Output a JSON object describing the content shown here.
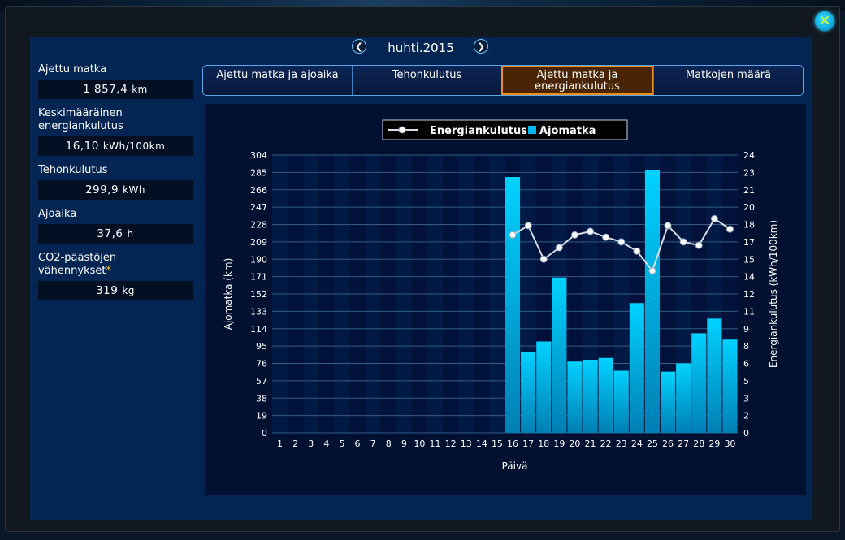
{
  "window": {
    "close_icon": "close-icon"
  },
  "nav": {
    "month": "huhti.2015",
    "prev_icon": "chevron-left-icon",
    "next_icon": "chevron-right-icon"
  },
  "stats": [
    {
      "label": "Ajettu matka",
      "value": "1 857,4",
      "unit": "km"
    },
    {
      "label": "Keskimääräinen energiankulutus",
      "value": "16,10",
      "unit": "kWh/100km"
    },
    {
      "label": "Tehonkulutus",
      "value": "299,9",
      "unit": "kWh"
    },
    {
      "label": "Ajoaika",
      "value": "37,6",
      "unit": "h"
    },
    {
      "label": "CO2-päästöjen vähennykset",
      "asterisk": "*",
      "value": "319",
      "unit": "kg"
    }
  ],
  "tabs": [
    {
      "label": "Ajettu matka ja ajoaika",
      "active": false
    },
    {
      "label": "Tehonkulutus",
      "active": false
    },
    {
      "label": "Ajettu matka ja energiankulutus",
      "active": true
    },
    {
      "label": "Matkojen määrä",
      "active": false
    }
  ],
  "colors": {
    "accent_tab": "#ef8f1a",
    "bar": "#00b8ef",
    "line": "#d8dde6",
    "panel": "#022554"
  },
  "chart_data": {
    "type": "bar+line",
    "xlabel": "Päivä",
    "ylabel": "Ajomatka (km)",
    "y2label": "Energiankulutus (kWh/100km)",
    "ylim": [
      0,
      304
    ],
    "y2lim": [
      0,
      24
    ],
    "yticks": [
      0,
      19,
      38,
      57,
      76,
      95,
      114,
      133,
      152,
      171,
      190,
      209,
      228,
      247,
      266,
      285,
      304
    ],
    "y2ticks": [
      0,
      2,
      3,
      5,
      6,
      8,
      9,
      11,
      12,
      14,
      15,
      17,
      18,
      20,
      21,
      23,
      24
    ],
    "categories": [
      "1",
      "2",
      "3",
      "4",
      "5",
      "6",
      "7",
      "8",
      "9",
      "10",
      "11",
      "12",
      "13",
      "14",
      "15",
      "16",
      "17",
      "18",
      "19",
      "20",
      "21",
      "22",
      "23",
      "24",
      "25",
      "26",
      "27",
      "28",
      "29",
      "30"
    ],
    "legend": [
      "Energiankulutus",
      "Ajomatka"
    ],
    "legend_position": "top-center",
    "grid": true,
    "series": [
      {
        "name": "Ajomatka",
        "axis": "left",
        "kind": "bar",
        "values": [
          0,
          0,
          0,
          0,
          0,
          0,
          0,
          0,
          0,
          0,
          0,
          0,
          0,
          0,
          0,
          280,
          88,
          100,
          170,
          78,
          80,
          82,
          68,
          142,
          288,
          67,
          76,
          109,
          125,
          102
        ]
      },
      {
        "name": "Energiankulutus",
        "axis": "right",
        "kind": "line",
        "values": [
          null,
          null,
          null,
          null,
          null,
          null,
          null,
          null,
          null,
          null,
          null,
          null,
          null,
          null,
          null,
          17.1,
          17.9,
          15.0,
          16.0,
          17.1,
          17.4,
          16.9,
          16.5,
          15.7,
          14.0,
          17.9,
          16.5,
          16.2,
          18.5,
          17.6
        ]
      }
    ]
  }
}
